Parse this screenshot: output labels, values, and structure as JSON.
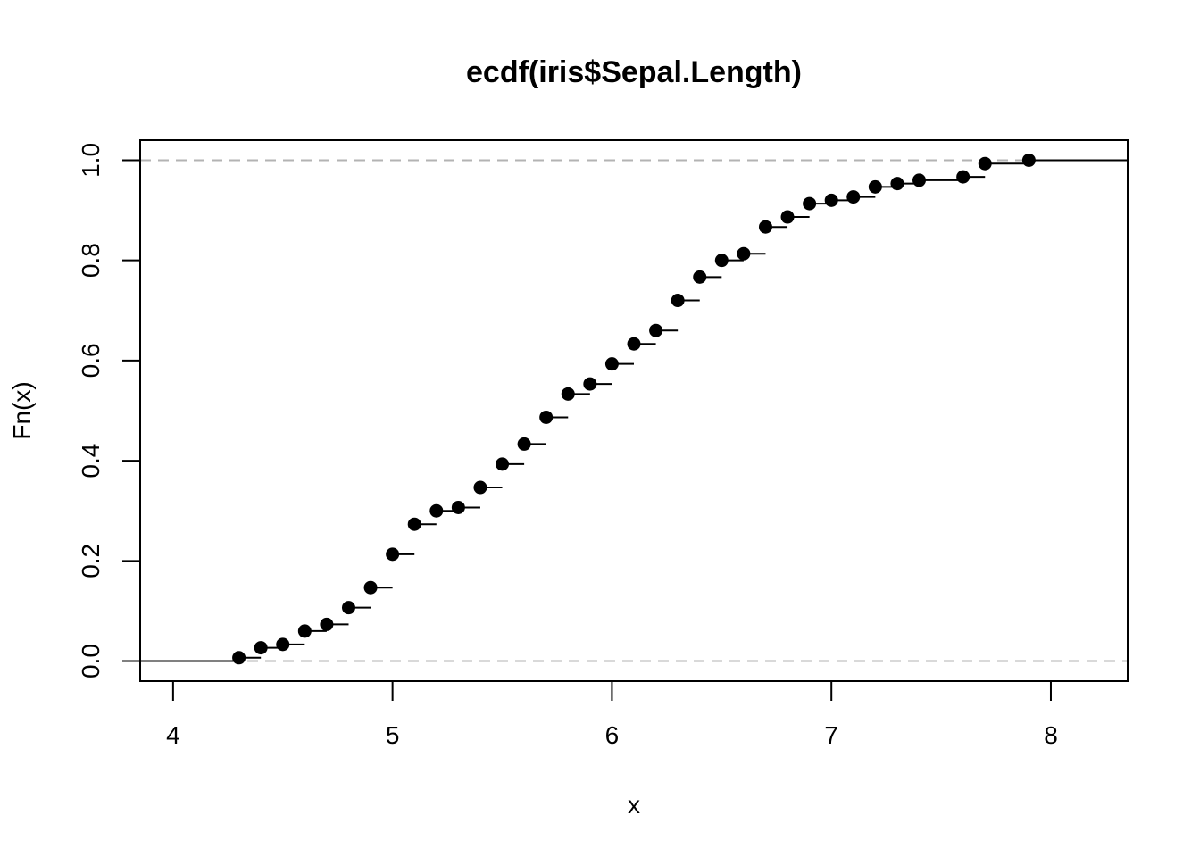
{
  "chart_data": {
    "type": "scatter",
    "title": "ecdf(iris$Sepal.Length)",
    "xlabel": "x",
    "ylabel": "Fn(x)",
    "xlim": [
      3.85,
      8.35
    ],
    "ylim": [
      -0.04,
      1.04
    ],
    "x_ticks": [
      "4",
      "5",
      "6",
      "7",
      "8"
    ],
    "y_ticks": [
      "0.0",
      "0.2",
      "0.4",
      "0.6",
      "0.8",
      "1.0"
    ],
    "reference_lines": [
      0,
      1
    ],
    "grid": false,
    "x": [
      4.3,
      4.4,
      4.5,
      4.6,
      4.7,
      4.8,
      4.9,
      5.0,
      5.1,
      5.2,
      5.3,
      5.4,
      5.5,
      5.6,
      5.7,
      5.8,
      5.9,
      6.0,
      6.1,
      6.2,
      6.3,
      6.4,
      6.5,
      6.6,
      6.7,
      6.8,
      6.9,
      7.0,
      7.1,
      7.2,
      7.3,
      7.4,
      7.6,
      7.7,
      7.9
    ],
    "y": [
      0.0067,
      0.0267,
      0.0333,
      0.06,
      0.0733,
      0.1067,
      0.1467,
      0.2133,
      0.2733,
      0.3,
      0.3067,
      0.3467,
      0.3933,
      0.4333,
      0.4867,
      0.5333,
      0.5533,
      0.5933,
      0.6333,
      0.66,
      0.72,
      0.7667,
      0.8,
      0.8133,
      0.8667,
      0.8867,
      0.9133,
      0.92,
      0.9267,
      0.9467,
      0.9533,
      0.96,
      0.9667,
      0.9933,
      1.0
    ],
    "colors": {
      "points": "#000000",
      "steps": "#000000",
      "reference": "#b3b3b3",
      "frame": "#000000"
    }
  }
}
